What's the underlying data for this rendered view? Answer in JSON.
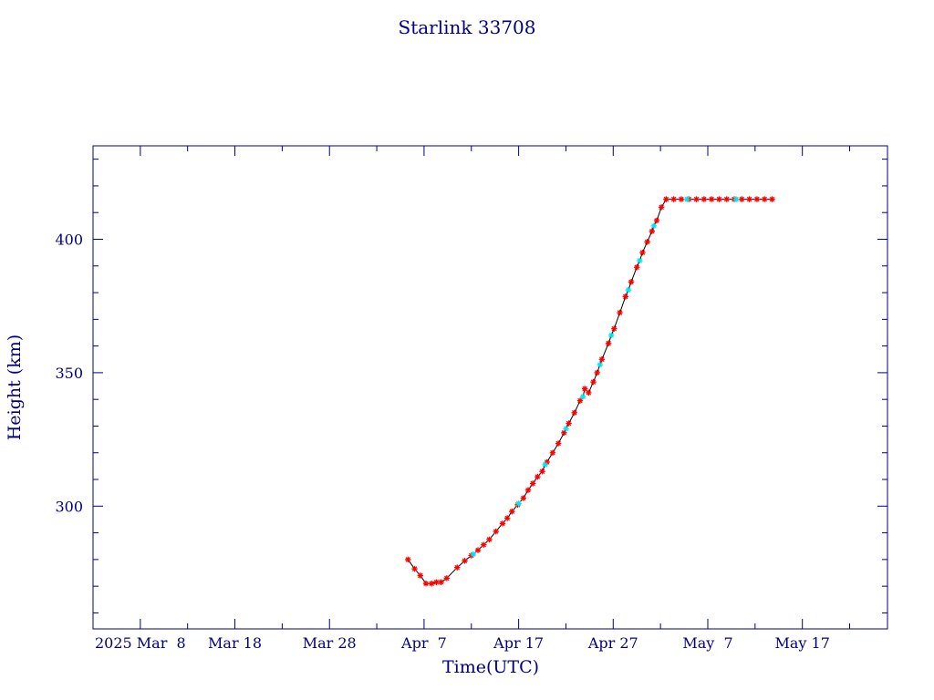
{
  "chart_data": {
    "type": "scatter",
    "title": "Starlink 33708",
    "xlabel": "Time(UTC)",
    "ylabel": "Height (km)",
    "x_range_days": [
      -5,
      79
    ],
    "x_tick_labels": [
      {
        "day": 0,
        "label": "2025 Mar  8"
      },
      {
        "day": 10,
        "label": "Mar 18"
      },
      {
        "day": 20,
        "label": "Mar 28"
      },
      {
        "day": 30,
        "label": "Apr  7"
      },
      {
        "day": 40,
        "label": "Apr 17"
      },
      {
        "day": 50,
        "label": "Apr 27"
      },
      {
        "day": 60,
        "label": "May  7"
      },
      {
        "day": 70,
        "label": "May 17"
      }
    ],
    "ylim": [
      254,
      435
    ],
    "y_ticks": [
      300,
      350,
      400
    ],
    "colors": {
      "axis": "#000080",
      "line": "#000000",
      "primary": "#ff0000",
      "secondary": "#00e5ee"
    },
    "series": [
      {
        "values": [
          [
            28.3,
            280.0
          ],
          [
            29.0,
            276.5
          ],
          [
            29.6,
            274.0
          ],
          [
            30.2,
            271.0
          ],
          [
            30.8,
            271.0
          ],
          [
            31.3,
            271.5
          ],
          [
            31.8,
            271.5
          ],
          [
            32.4,
            273.0
          ],
          [
            33.5,
            277.0
          ],
          [
            34.3,
            279.5
          ],
          [
            35.0,
            281.5
          ],
          [
            35.7,
            283.5
          ],
          [
            36.3,
            285.5
          ],
          [
            36.9,
            287.5
          ],
          [
            37.6,
            290.5
          ],
          [
            38.3,
            293.5
          ],
          [
            38.8,
            295.5
          ],
          [
            39.3,
            298.0
          ],
          [
            39.9,
            300.5
          ],
          [
            40.5,
            303.0
          ],
          [
            41.0,
            306.0
          ],
          [
            41.5,
            308.5
          ],
          [
            42.0,
            311.0
          ],
          [
            42.5,
            313.0
          ],
          [
            43.0,
            316.5
          ],
          [
            43.6,
            320.0
          ],
          [
            44.2,
            323.5
          ],
          [
            44.8,
            327.5
          ],
          [
            45.3,
            331.0
          ],
          [
            45.9,
            335.0
          ],
          [
            46.5,
            339.5
          ],
          [
            47.0,
            344.0
          ],
          [
            47.4,
            342.5
          ],
          [
            47.9,
            346.5
          ],
          [
            48.3,
            350.0
          ],
          [
            48.8,
            355.0
          ],
          [
            49.5,
            361.0
          ],
          [
            50.1,
            366.5
          ],
          [
            50.7,
            372.5
          ],
          [
            51.3,
            378.5
          ],
          [
            51.9,
            384.0
          ],
          [
            52.5,
            389.5
          ],
          [
            53.1,
            395.0
          ],
          [
            53.6,
            399.0
          ],
          [
            54.1,
            403.0
          ],
          [
            54.6,
            407.0
          ],
          [
            55.1,
            412.0
          ],
          [
            55.6,
            415.0
          ],
          [
            56.4,
            415.0
          ],
          [
            57.2,
            415.0
          ],
          [
            58.0,
            415.0
          ],
          [
            58.8,
            415.0
          ],
          [
            59.6,
            415.0
          ],
          [
            60.4,
            415.0
          ],
          [
            61.2,
            415.0
          ],
          [
            62.0,
            415.0
          ],
          [
            62.8,
            415.0
          ],
          [
            63.6,
            415.0
          ],
          [
            64.4,
            415.0
          ],
          [
            65.2,
            415.0
          ],
          [
            66.0,
            415.0
          ],
          [
            66.8,
            415.0
          ]
        ]
      },
      {
        "values": [
          [
            35.2,
            282.0
          ],
          [
            40.0,
            301.0
          ],
          [
            42.8,
            315.5
          ],
          [
            45.0,
            329.0
          ],
          [
            46.8,
            341.0
          ],
          [
            48.6,
            353.0
          ],
          [
            49.8,
            364.0
          ],
          [
            51.6,
            381.0
          ],
          [
            52.8,
            392.0
          ],
          [
            54.3,
            405.0
          ],
          [
            57.8,
            415.0
          ],
          [
            63.0,
            415.0
          ]
        ]
      }
    ]
  }
}
